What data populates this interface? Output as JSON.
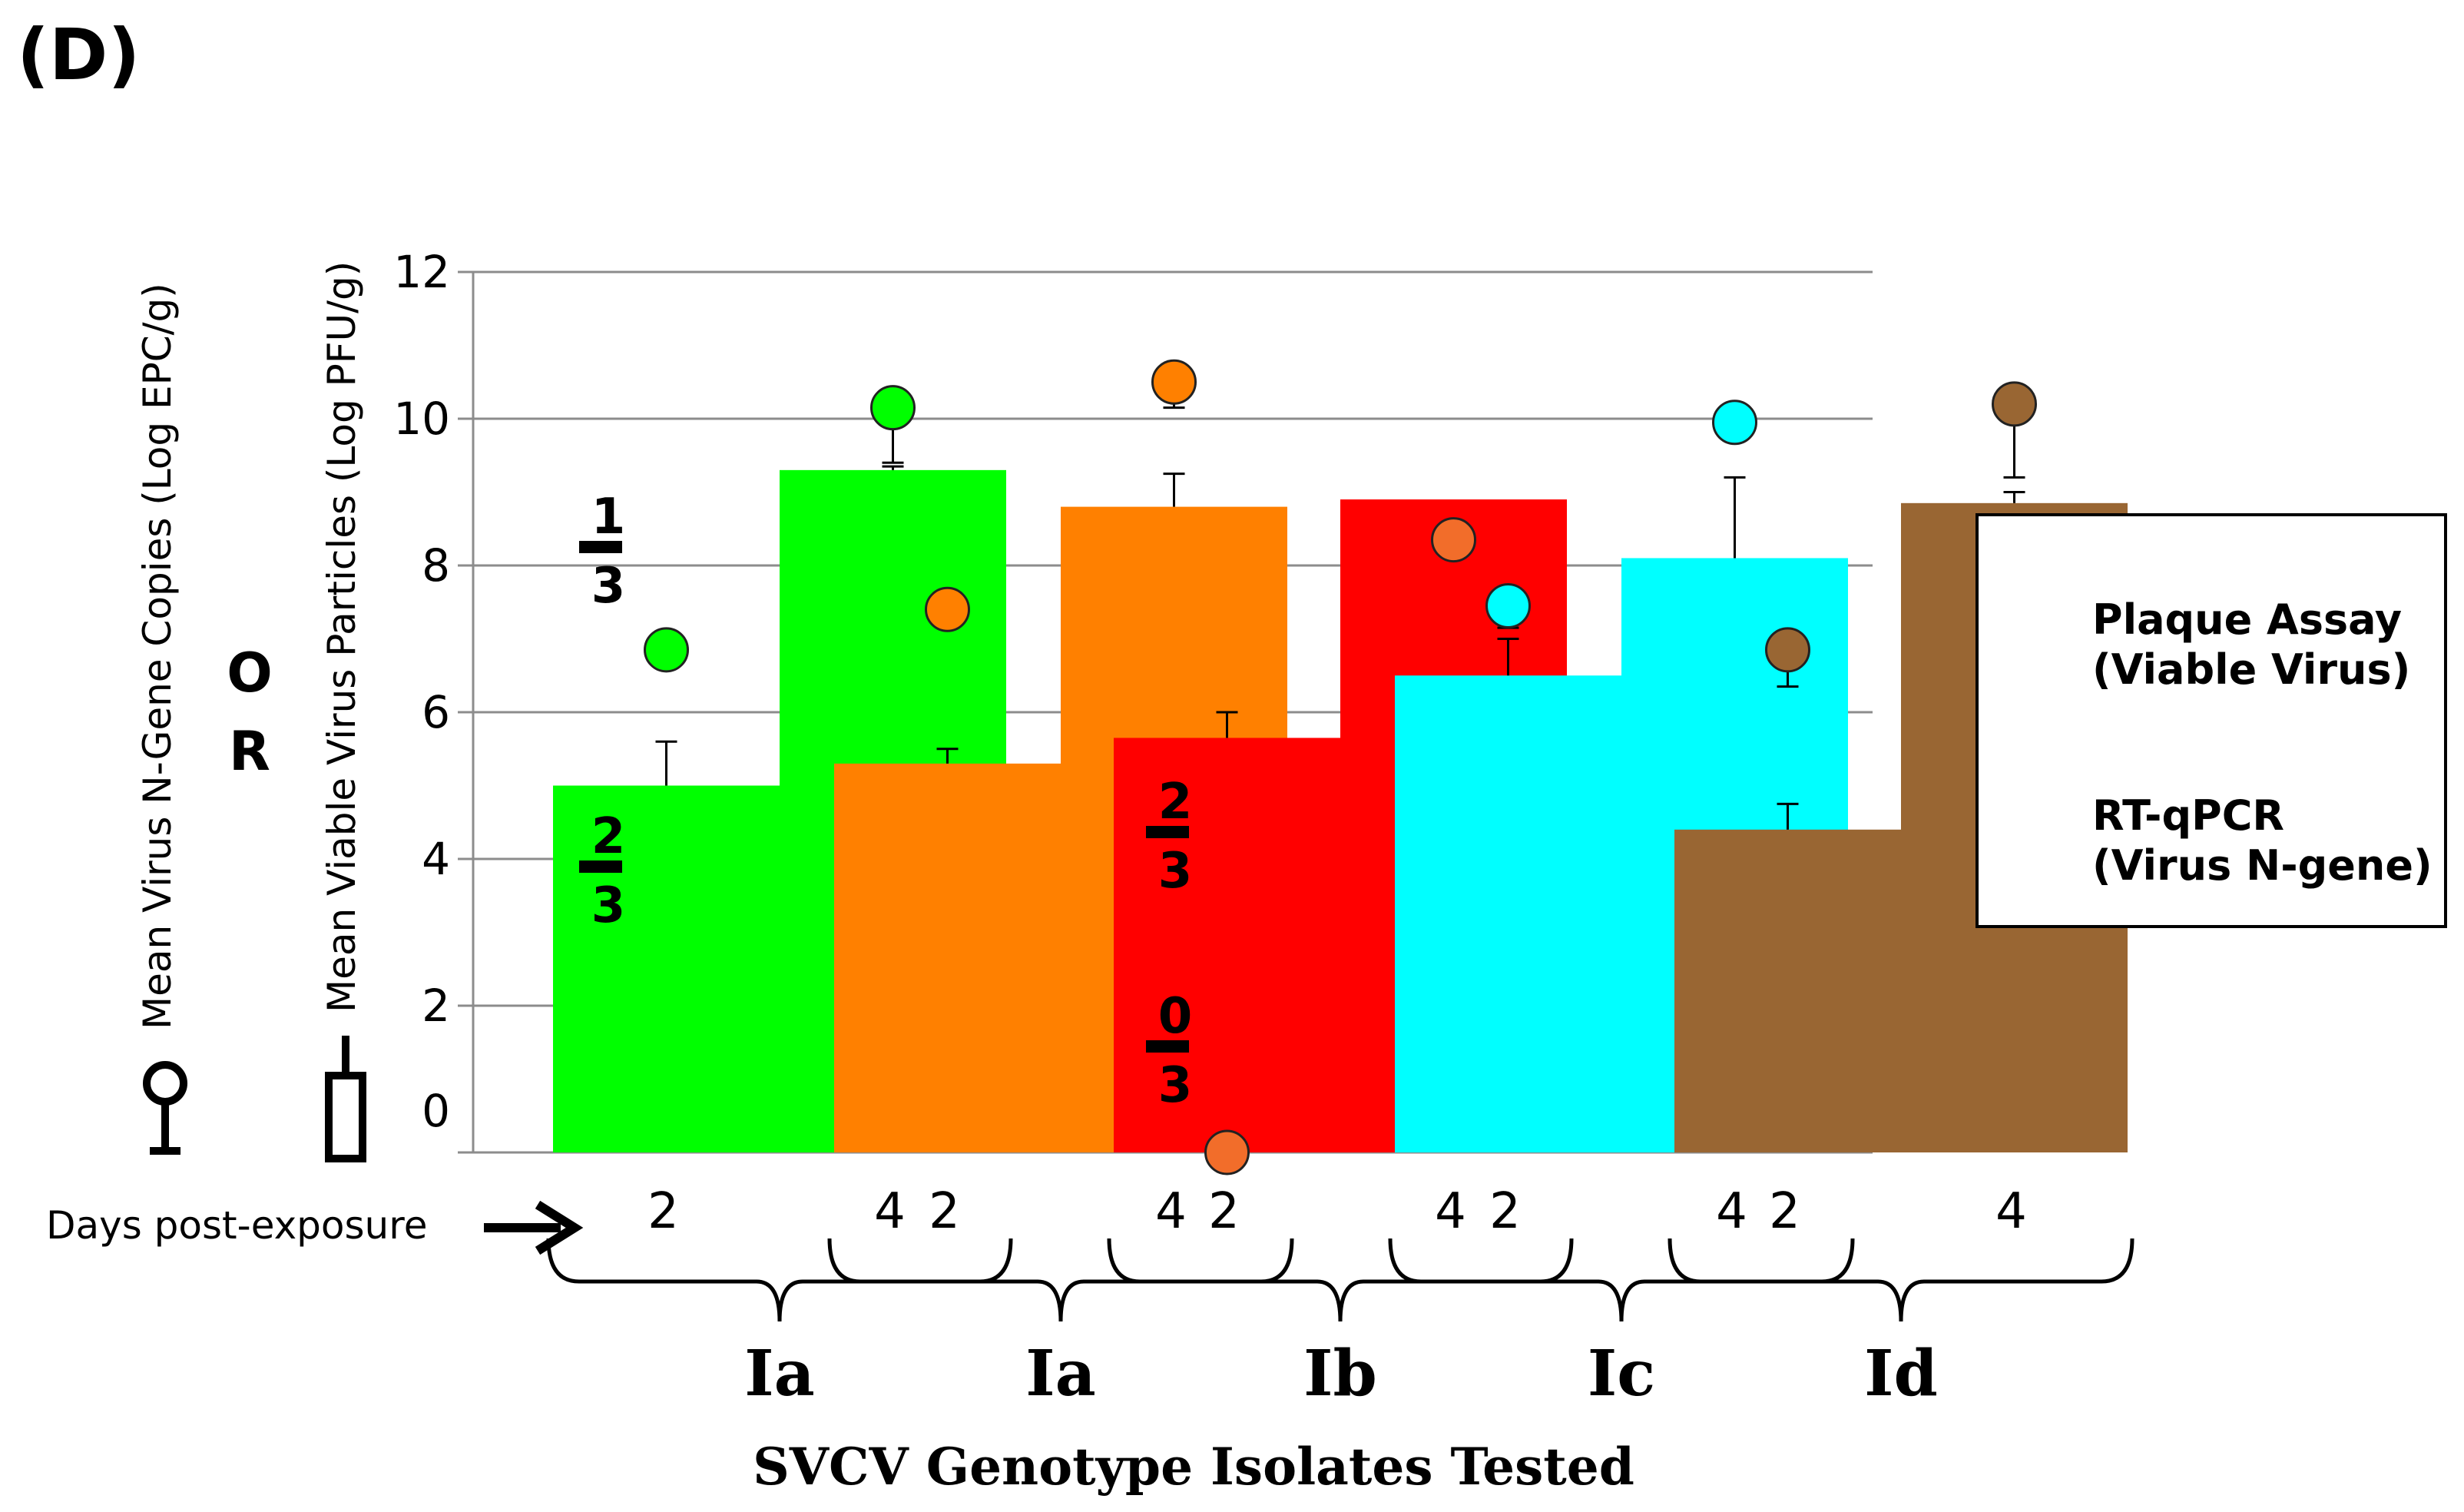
{
  "panel_label": "(D)",
  "chart_data": {
    "type": "bar",
    "title": "",
    "xlabel": "SVCV Genotype Isolates Tested",
    "ylabel_epc": "Mean Virus N-Gene Copies  (Log EPC/g)",
    "ylabel_or": "OR",
    "ylabel_pfu": "Mean Viable Virus Particles  (Log PFU/g)",
    "ylim": [
      0,
      12
    ],
    "yticks": [
      "0",
      "2",
      "4",
      "6",
      "8",
      "10",
      "12"
    ],
    "grid": true,
    "days_label": "Days post-exposure",
    "groups": [
      {
        "genotype": "Ia",
        "color": "#00ff00",
        "bars": [
          {
            "day": "2",
            "pfu": 5.0,
            "pfu_err": 0.6,
            "epc": 6.85,
            "epc_err": 0,
            "fraction": {
              "num": "2",
              "den": "3"
            }
          },
          {
            "day": "4",
            "pfu": 9.3,
            "pfu_err": 0.05,
            "epc": 10.15,
            "epc_err": 0.75,
            "fraction": null
          }
        ],
        "extra_fraction": {
          "num": "1",
          "den": "3"
        }
      },
      {
        "genotype": "Ia",
        "color": "#ff8000",
        "bars": [
          {
            "day": "2",
            "pfu": 5.3,
            "pfu_err": 0.2,
            "epc": 7.4,
            "epc_err": 0,
            "fraction": null
          },
          {
            "day": "4",
            "pfu": 8.8,
            "pfu_err": 0.45,
            "epc": 10.5,
            "epc_err": 0.35,
            "fraction": null
          }
        ]
      },
      {
        "genotype": "Ib",
        "color": "#ff0000",
        "bars": [
          {
            "day": "2",
            "pfu": 5.65,
            "pfu_err": 0.35,
            "epc": 0.0,
            "epc_err": 0,
            "fraction": {
              "num": "2",
              "den": "3"
            }
          },
          {
            "day": "4",
            "pfu": 8.9,
            "pfu_err": 0,
            "epc": 8.35,
            "epc_err": 0,
            "fraction": null
          }
        ],
        "extra_fraction": {
          "num": "0",
          "den": "3"
        }
      },
      {
        "genotype": "Ic",
        "color": "#00ffff",
        "bars": [
          {
            "day": "2",
            "pfu": 6.5,
            "pfu_err": 0.5,
            "epc": 7.45,
            "epc_err": 0.3,
            "fraction": null
          },
          {
            "day": "4",
            "pfu": 8.1,
            "pfu_err": 1.1,
            "epc": 9.95,
            "epc_err": 0,
            "fraction": null
          }
        ]
      },
      {
        "genotype": "Id",
        "color": "#996633",
        "bars": [
          {
            "day": "2",
            "pfu": 4.4,
            "pfu_err": 0.35,
            "epc": 6.85,
            "epc_err": 0.5,
            "fraction": null
          },
          {
            "day": "4",
            "pfu": 8.85,
            "pfu_err": 0.15,
            "epc": 10.2,
            "epc_err": 1.0,
            "fraction": null
          }
        ]
      }
    ],
    "legend": {
      "placement": "right",
      "plaque_line1": "Plaque Assay",
      "plaque_line2": "(Viable Virus)",
      "pcr_line1": "RT-qPCR",
      "pcr_line2": "(Virus N-gene)"
    }
  }
}
